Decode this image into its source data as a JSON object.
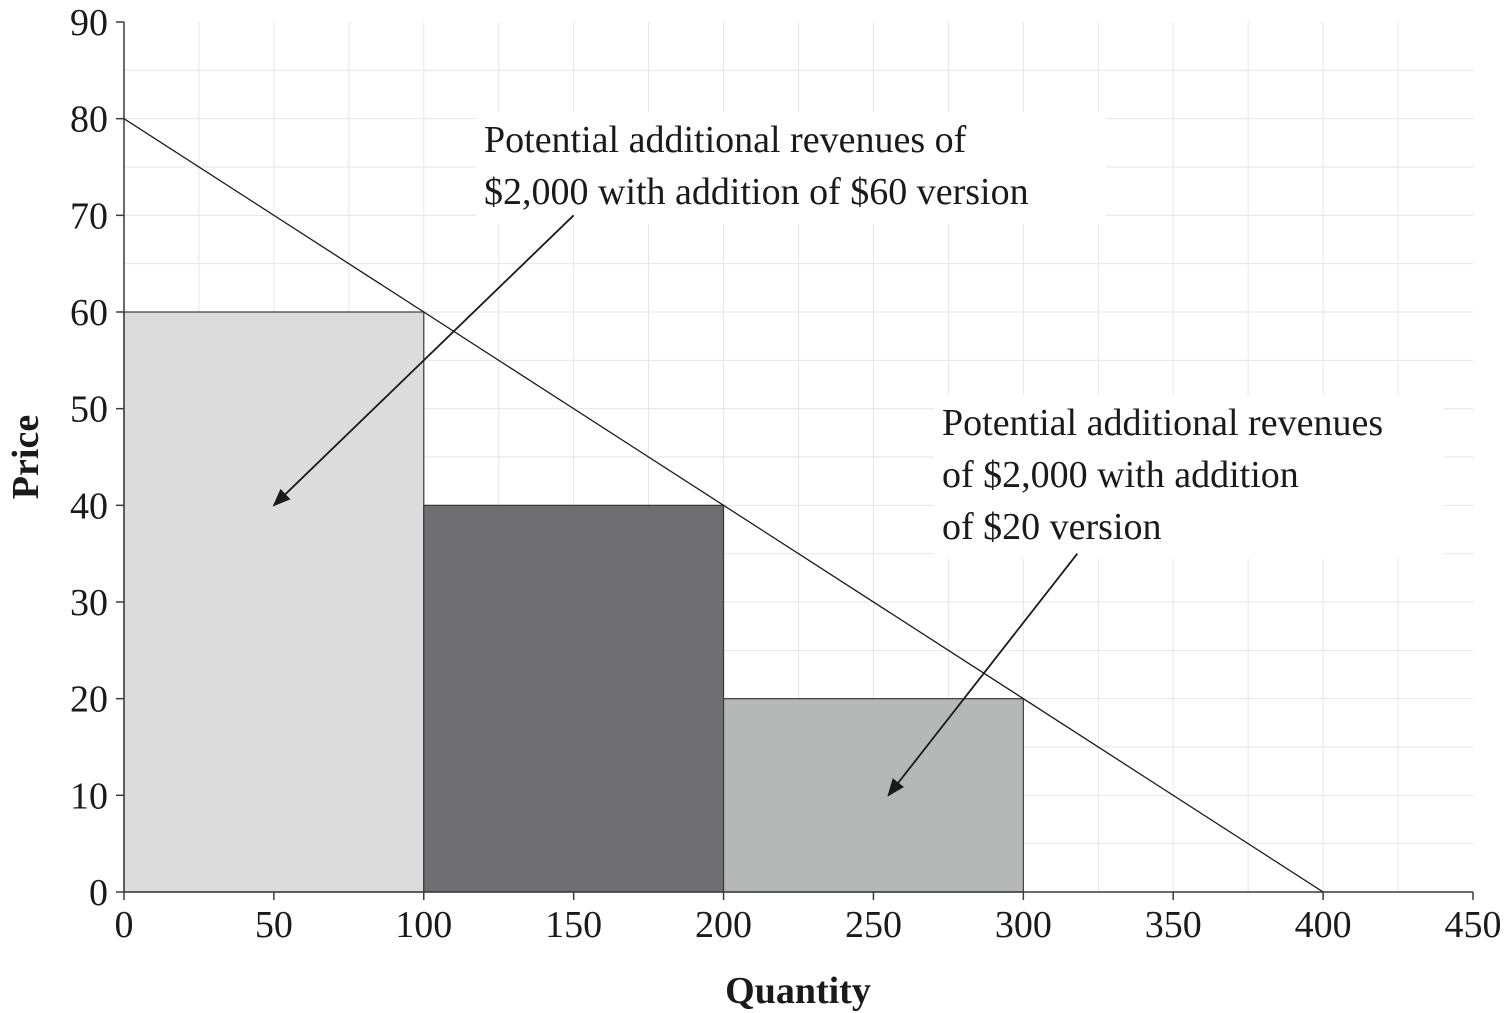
{
  "chart_data": {
    "type": "bar",
    "xlabel": "Quantity",
    "ylabel": "Price",
    "xlim": [
      0,
      450
    ],
    "ylim": [
      0,
      90
    ],
    "x_ticks": [
      "0",
      "50",
      "100",
      "150",
      "200",
      "250",
      "300",
      "350",
      "400",
      "450"
    ],
    "y_ticks": [
      "0",
      "10",
      "20",
      "30",
      "40",
      "50",
      "60",
      "70",
      "80",
      "90"
    ],
    "grid": true,
    "bars": [
      {
        "x_start": 0,
        "x_end": 100,
        "value": 60,
        "color": "#dcdcdc"
      },
      {
        "x_start": 100,
        "x_end": 200,
        "value": 40,
        "color": "#6f6f73"
      },
      {
        "x_start": 200,
        "x_end": 300,
        "value": 20,
        "color": "#b6b8b8"
      }
    ],
    "demand_line": {
      "points": [
        [
          0,
          80
        ],
        [
          400,
          0
        ]
      ],
      "color": "#1a1a1a"
    },
    "annotations": [
      {
        "lines": [
          "Potential additional revenues of",
          "$2,000 with addition of $60 version"
        ],
        "arrow_from": [
          150,
          70
        ],
        "arrow_to": [
          50,
          40
        ]
      },
      {
        "lines": [
          "Potential additional revenues",
          "of $2,000 with addition",
          "of $20 version"
        ],
        "arrow_from": [
          318,
          35
        ],
        "arrow_to": [
          255,
          10
        ]
      }
    ]
  }
}
